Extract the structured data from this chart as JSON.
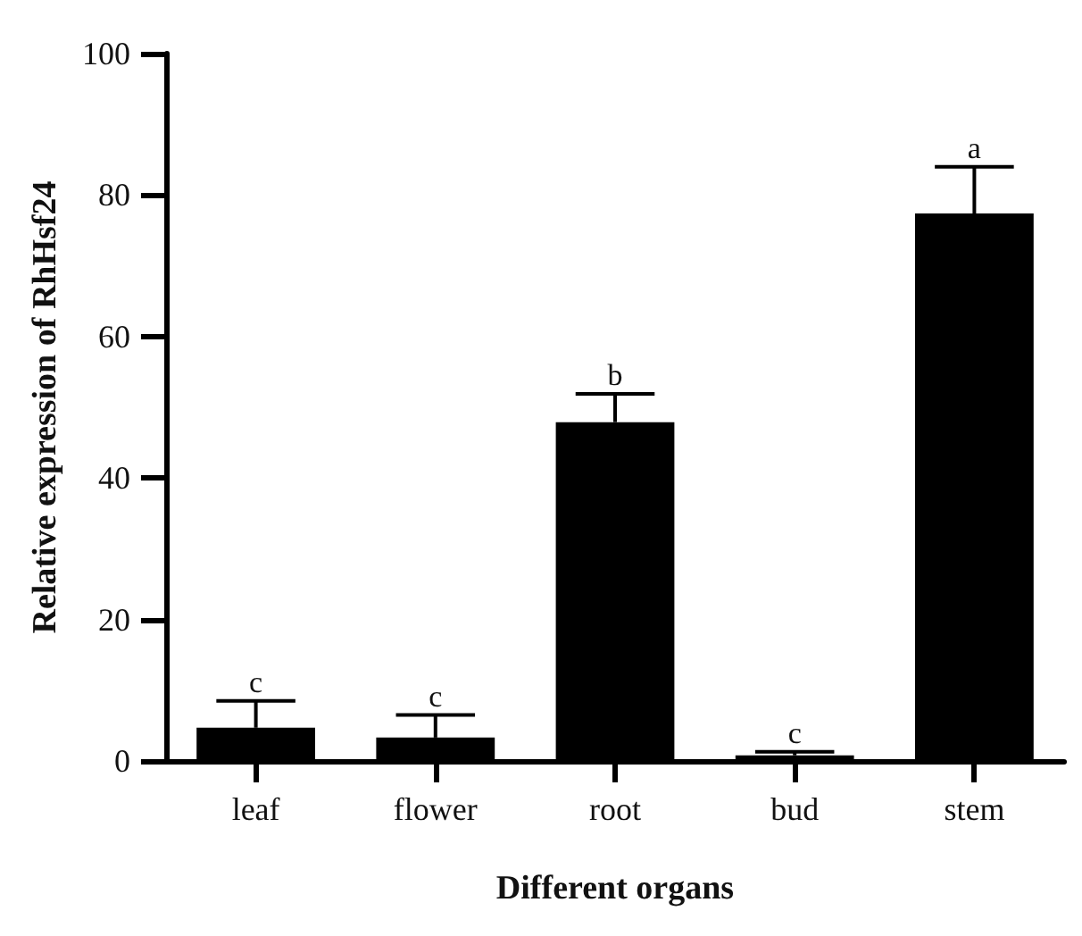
{
  "chart_data": {
    "type": "bar",
    "categories": [
      "leaf",
      "flower",
      "root",
      "bud",
      "stem"
    ],
    "values": [
      4.7,
      3.3,
      47.9,
      0.8,
      77.4
    ],
    "color": "#000000",
    "errors": [
      [
        4.7,
        8.5
      ],
      [
        3.3,
        6.5
      ],
      [
        47.9,
        51.9
      ],
      [
        0.8,
        1.3
      ],
      [
        77.4,
        84.0
      ]
    ],
    "xlabel": "Different organs",
    "ylabel": "Relative expression of RhHsf24",
    "ylim": [
      0,
      100
    ],
    "yticks": [
      0,
      20,
      40,
      60,
      80,
      100
    ],
    "grid": false,
    "annotations": [
      {
        "text": "c",
        "x": "leaf",
        "y": 8.5
      },
      {
        "text": "c",
        "x": "flower",
        "y": 6.5
      },
      {
        "text": "b",
        "x": "root",
        "y": 51.9
      },
      {
        "text": "c",
        "x": "bud",
        "y": 1.3
      },
      {
        "text": "a",
        "x": "stem",
        "y": 84.0
      }
    ]
  }
}
